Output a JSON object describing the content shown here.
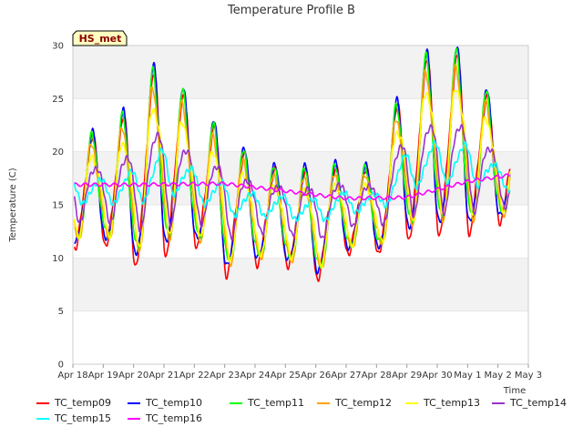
{
  "chart_data": {
    "type": "line",
    "title": "Temperature Profile B",
    "xlabel": "Time",
    "ylabel": "Temperature (C)",
    "ylim": [
      0,
      30
    ],
    "yticks": [
      0,
      5,
      10,
      15,
      20,
      25,
      30
    ],
    "xticks": [
      "Apr 18",
      "Apr 19",
      "Apr 20",
      "Apr 21",
      "Apr 22",
      "Apr 23",
      "Apr 24",
      "Apr 25",
      "Apr 26",
      "Apr 27",
      "Apr 28",
      "Apr 29",
      "Apr 30",
      "May 1",
      "May 2",
      "May 3"
    ],
    "xlim": [
      "2024-04-18",
      "2024-05-03"
    ],
    "badge": "HS_met",
    "grid": true,
    "legend_position": "bottom",
    "days": [
      "Apr 18",
      "Apr 19",
      "Apr 20",
      "Apr 21",
      "Apr 22",
      "Apr 23",
      "Apr 24",
      "Apr 25",
      "Apr 26",
      "Apr 27",
      "Apr 28",
      "Apr 29",
      "Apr 30",
      "May 1",
      "May 2"
    ],
    "daily_max": [
      21.5,
      21.0,
      24.0,
      28.5,
      23.0,
      21.5,
      18.5,
      18.0,
      18.0,
      18.5,
      18.0,
      27.0,
      29.0,
      28.5,
      23.0
    ],
    "daily_min": [
      11.0,
      11.5,
      9.5,
      10.5,
      11.5,
      8.5,
      9.5,
      9.5,
      8.0,
      10.5,
      10.5,
      12.0,
      12.5,
      12.5,
      13.5
    ],
    "series": [
      {
        "name": "TC_temp09",
        "color": "#ff0000",
        "amp": 1.0,
        "lag": 0.0
      },
      {
        "name": "TC_temp10",
        "color": "#0000ff",
        "amp": 1.0,
        "lag": 0.01
      },
      {
        "name": "TC_temp11",
        "color": "#00ff00",
        "amp": 0.95,
        "lag": 0.02
      },
      {
        "name": "TC_temp12",
        "color": "#ffa500",
        "amp": 0.85,
        "lag": 0.03
      },
      {
        "name": "TC_temp13",
        "color": "#ffff00",
        "amp": 0.72,
        "lag": 0.05
      },
      {
        "name": "TC_temp14",
        "color": "#9932cc",
        "amp": 0.5,
        "lag": 0.12
      },
      {
        "name": "TC_temp15",
        "color": "#00ffff",
        "amp": 0.22,
        "lag": 0.25
      },
      {
        "name": "TC_temp16",
        "color": "#ff00ff",
        "amp": 0.03,
        "lag": 0.3
      }
    ],
    "tc16_trend": [
      [
        0,
        16.9
      ],
      [
        2,
        16.9
      ],
      [
        5,
        17.0
      ],
      [
        7,
        16.3
      ],
      [
        9,
        15.6
      ],
      [
        11,
        15.7
      ],
      [
        13,
        17.2
      ],
      [
        14.4,
        17.8
      ]
    ]
  }
}
